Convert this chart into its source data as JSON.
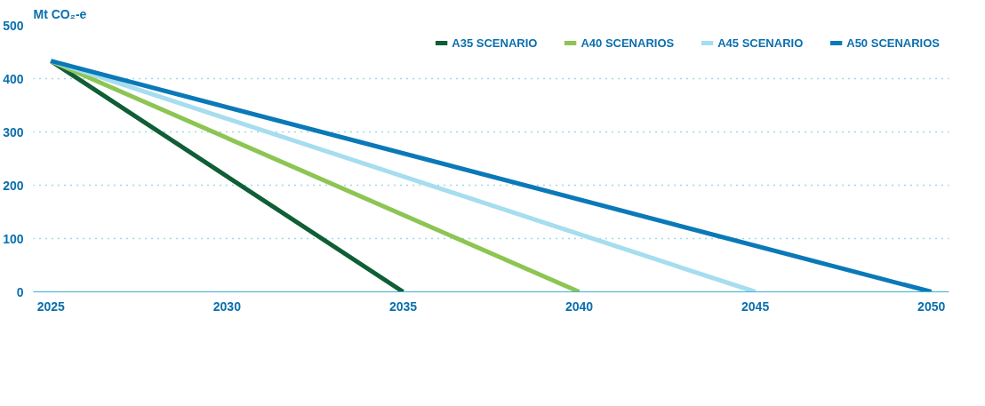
{
  "chart_data": {
    "type": "line",
    "ylabel": "Mt CO₂-e",
    "xlim": [
      2024.5,
      2050.5
    ],
    "xticks": [
      2025,
      2030,
      2035,
      2040,
      2045,
      2050
    ],
    "ylim": [
      0,
      500
    ],
    "yticks": [
      0,
      100,
      200,
      300,
      400,
      500
    ],
    "grid": "y",
    "legend": "top right",
    "marker": "none",
    "line_style": "solid",
    "series": [
      {
        "name": "A35 SCENARIO",
        "color": "#0f5e36",
        "x": [
          2025,
          2035
        ],
        "values": [
          433,
          0
        ]
      },
      {
        "name": "A40 SCENARIOS",
        "color": "#8dc553",
        "x": [
          2025,
          2040
        ],
        "values": [
          433,
          0
        ]
      },
      {
        "name": "A45 SCENARIO",
        "color": "#a6ddef",
        "x": [
          2025,
          2045
        ],
        "values": [
          433,
          0
        ]
      },
      {
        "name": "A50 SCENARIOS",
        "color": "#0b79b8",
        "x": [
          2025,
          2050
        ],
        "values": [
          433,
          0
        ]
      }
    ]
  }
}
